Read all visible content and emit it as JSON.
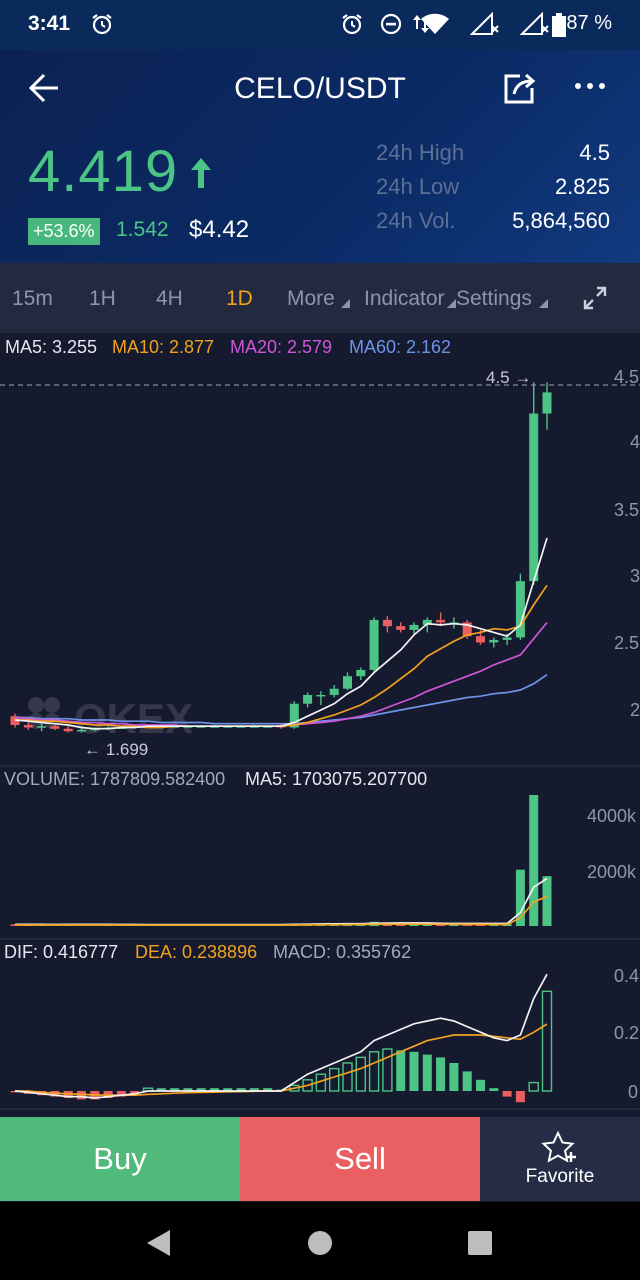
{
  "status_bar": {
    "time": "3:41",
    "battery": "87 %"
  },
  "header": {
    "title": "CELO/USDT"
  },
  "ticker": {
    "price": "4.419",
    "change_pct": "+53.6%",
    "change_abs": "1.542",
    "usd_price": "$4.42",
    "stats": [
      {
        "label": "24h High",
        "value": "4.5"
      },
      {
        "label": "24h Low",
        "value": "2.825"
      },
      {
        "label": "24h Vol.",
        "value": "5,864,560"
      }
    ],
    "up_color": "#4cc486",
    "down_color": "#ea6062"
  },
  "toolbar": {
    "items": [
      "15m",
      "1H",
      "4H",
      "1D",
      "More",
      "Indicator",
      "Settings"
    ],
    "active": "1D"
  },
  "main_legend": {
    "ma5": "MA5: 3.255",
    "ma10": "MA10: 2.877",
    "ma20": "MA20: 2.579",
    "ma60": "MA60: 2.162"
  },
  "volume_legend": {
    "volume": "VOLUME: 1787809.582400",
    "ma5": "MA5: 1703075.207700"
  },
  "macd_legend": {
    "dif": "DIF: 0.416777",
    "dea": "DEA: 0.238896",
    "macd": "MACD: 0.355762"
  },
  "price_axis": [
    "4.5",
    "4",
    "3.5",
    "3",
    "2.5",
    "2"
  ],
  "volume_axis": [
    "4000k",
    "2000k"
  ],
  "macd_axis": [
    "0.4",
    "0.2",
    "0"
  ],
  "annotations": {
    "high_marker": "4.5 →",
    "low_marker": "← 1.699"
  },
  "watermark": "OKEX",
  "buttons": {
    "buy": "Buy",
    "sell": "Sell",
    "favorite": "Favorite"
  },
  "chart_data": {
    "type": "candlestick",
    "ylim": [
      1.6,
      4.55
    ],
    "ohlc": [
      [
        1.83,
        1.85,
        1.74,
        1.76
      ],
      [
        1.76,
        1.78,
        1.72,
        1.74
      ],
      [
        1.74,
        1.77,
        1.71,
        1.75
      ],
      [
        1.75,
        1.76,
        1.72,
        1.73
      ],
      [
        1.73,
        1.75,
        1.7,
        1.71
      ],
      [
        1.71,
        1.73,
        1.699,
        1.72
      ],
      [
        1.72,
        1.74,
        1.71,
        1.73
      ],
      [
        1.73,
        1.75,
        1.72,
        1.74
      ],
      [
        1.74,
        1.75,
        1.73,
        1.74
      ],
      [
        1.74,
        1.76,
        1.73,
        1.75
      ],
      [
        1.75,
        1.76,
        1.74,
        1.75
      ],
      [
        1.75,
        1.76,
        1.74,
        1.75
      ],
      [
        1.75,
        1.76,
        1.74,
        1.75
      ],
      [
        1.75,
        1.76,
        1.74,
        1.75
      ],
      [
        1.75,
        1.76,
        1.74,
        1.75
      ],
      [
        1.75,
        1.76,
        1.74,
        1.75
      ],
      [
        1.75,
        1.76,
        1.74,
        1.75
      ],
      [
        1.75,
        1.76,
        1.74,
        1.75
      ],
      [
        1.75,
        1.76,
        1.74,
        1.75
      ],
      [
        1.75,
        1.76,
        1.74,
        1.75
      ],
      [
        1.76,
        1.77,
        1.73,
        1.74
      ],
      [
        1.74,
        1.95,
        1.73,
        1.93
      ],
      [
        1.93,
        2.02,
        1.9,
        2.0
      ],
      [
        2.0,
        2.03,
        1.92,
        2.0
      ],
      [
        2.0,
        2.08,
        1.98,
        2.05
      ],
      [
        2.05,
        2.18,
        2.04,
        2.15
      ],
      [
        2.15,
        2.22,
        2.12,
        2.2
      ],
      [
        2.2,
        2.62,
        2.18,
        2.6
      ],
      [
        2.6,
        2.63,
        2.5,
        2.55
      ],
      [
        2.55,
        2.58,
        2.5,
        2.52
      ],
      [
        2.52,
        2.58,
        2.48,
        2.56
      ],
      [
        2.56,
        2.62,
        2.5,
        2.6
      ],
      [
        2.6,
        2.66,
        2.55,
        2.58
      ],
      [
        2.58,
        2.62,
        2.53,
        2.58
      ],
      [
        2.58,
        2.6,
        2.45,
        2.47
      ],
      [
        2.47,
        2.52,
        2.4,
        2.42
      ],
      [
        2.42,
        2.46,
        2.38,
        2.44
      ],
      [
        2.44,
        2.49,
        2.4,
        2.46
      ],
      [
        2.46,
        2.97,
        2.44,
        2.91
      ],
      [
        2.91,
        4.5,
        2.88,
        4.25
      ],
      [
        4.25,
        4.5,
        4.12,
        4.419
      ]
    ],
    "ma5": [
      1.8,
      1.79,
      1.78,
      1.77,
      1.76,
      1.74,
      1.73,
      1.73,
      1.74,
      1.74,
      1.75,
      1.75,
      1.75,
      1.75,
      1.75,
      1.75,
      1.75,
      1.75,
      1.75,
      1.75,
      1.75,
      1.78,
      1.83,
      1.88,
      1.93,
      2.01,
      2.07,
      2.18,
      2.27,
      2.36,
      2.48,
      2.57,
      2.56,
      2.57,
      2.56,
      2.53,
      2.5,
      2.47,
      2.56,
      2.91,
      3.255
    ],
    "ma10": [
      1.8,
      1.8,
      1.79,
      1.79,
      1.78,
      1.77,
      1.76,
      1.76,
      1.75,
      1.75,
      1.74,
      1.74,
      1.75,
      1.75,
      1.75,
      1.75,
      1.75,
      1.75,
      1.75,
      1.75,
      1.75,
      1.76,
      1.78,
      1.81,
      1.84,
      1.88,
      1.92,
      1.98,
      2.05,
      2.13,
      2.21,
      2.31,
      2.37,
      2.43,
      2.48,
      2.5,
      2.53,
      2.52,
      2.55,
      2.72,
      2.877
    ],
    "ma20": [
      1.82,
      1.81,
      1.8,
      1.8,
      1.79,
      1.78,
      1.78,
      1.77,
      1.77,
      1.76,
      1.76,
      1.76,
      1.76,
      1.75,
      1.75,
      1.75,
      1.75,
      1.75,
      1.75,
      1.75,
      1.75,
      1.76,
      1.77,
      1.78,
      1.79,
      1.81,
      1.83,
      1.86,
      1.9,
      1.94,
      1.98,
      2.03,
      2.07,
      2.11,
      2.15,
      2.19,
      2.24,
      2.28,
      2.32,
      2.45,
      2.579
    ],
    "ma60": [
      1.82,
      1.82,
      1.81,
      1.81,
      1.81,
      1.8,
      1.8,
      1.8,
      1.79,
      1.79,
      1.79,
      1.78,
      1.78,
      1.78,
      1.78,
      1.77,
      1.77,
      1.77,
      1.77,
      1.77,
      1.77,
      1.77,
      1.78,
      1.79,
      1.8,
      1.81,
      1.82,
      1.84,
      1.86,
      1.88,
      1.9,
      1.92,
      1.94,
      1.96,
      1.98,
      1.99,
      2.01,
      2.02,
      2.04,
      2.09,
      2.162
    ],
    "volume": [
      60,
      55,
      50,
      55,
      60,
      65,
      55,
      50,
      50,
      50,
      50,
      50,
      50,
      50,
      50,
      50,
      50,
      50,
      50,
      50,
      60,
      90,
      80,
      70,
      80,
      90,
      100,
      150,
      100,
      90,
      90,
      100,
      90,
      80,
      100,
      90,
      80,
      90,
      2020,
      4700,
      1787.81
    ],
    "volume_ma5": [
      60,
      58,
      56,
      55,
      56,
      57,
      57,
      56,
      55,
      54,
      52,
      51,
      50,
      50,
      50,
      50,
      50,
      50,
      50,
      50,
      52,
      60,
      66,
      70,
      76,
      82,
      84,
      98,
      104,
      106,
      106,
      106,
      98,
      90,
      90,
      90,
      88,
      88,
      476,
      1392,
      1703.08
    ],
    "macd": [
      -0.005,
      -0.01,
      -0.015,
      -0.02,
      -0.025,
      -0.03,
      -0.03,
      -0.025,
      -0.02,
      -0.015,
      0.01,
      0.01,
      0.01,
      0.01,
      0.01,
      0.01,
      0.01,
      0.01,
      0.01,
      0.01,
      0.005,
      0.02,
      0.04,
      0.06,
      0.08,
      0.1,
      0.12,
      0.14,
      0.15,
      0.145,
      0.14,
      0.13,
      0.12,
      0.1,
      0.07,
      0.04,
      0.01,
      -0.02,
      -0.04,
      0.03,
      0.356
    ],
    "dif": [
      0.0,
      -0.005,
      -0.01,
      -0.015,
      -0.02,
      -0.02,
      -0.025,
      -0.02,
      -0.015,
      -0.01,
      0.0,
      0.0,
      0.0,
      0.0,
      0.0,
      0.0,
      0.0,
      0.0,
      0.0,
      0.0,
      0.0,
      0.03,
      0.06,
      0.08,
      0.1,
      0.12,
      0.14,
      0.18,
      0.2,
      0.22,
      0.24,
      0.25,
      0.26,
      0.25,
      0.23,
      0.21,
      0.19,
      0.18,
      0.2,
      0.33,
      0.417
    ],
    "dea": [
      0.0,
      0.0,
      -0.005,
      -0.008,
      -0.01,
      -0.012,
      -0.014,
      -0.015,
      -0.015,
      -0.015,
      -0.012,
      -0.01,
      -0.008,
      -0.006,
      -0.005,
      -0.004,
      -0.003,
      -0.002,
      -0.001,
      0.0,
      0.0,
      0.01,
      0.02,
      0.035,
      0.05,
      0.065,
      0.08,
      0.1,
      0.12,
      0.14,
      0.16,
      0.18,
      0.19,
      0.2,
      0.2,
      0.2,
      0.195,
      0.19,
      0.185,
      0.21,
      0.239
    ]
  }
}
